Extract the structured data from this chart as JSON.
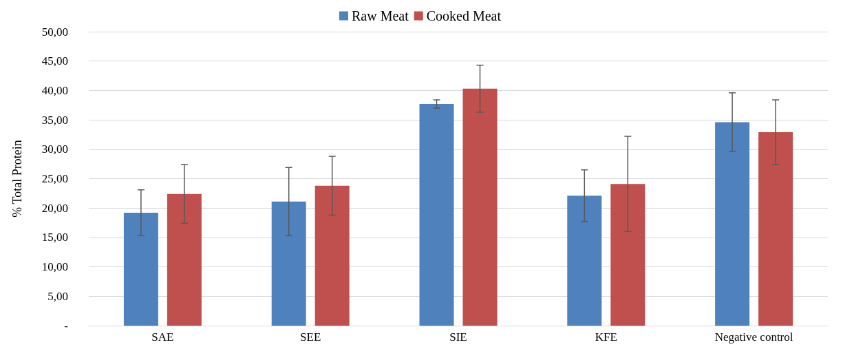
{
  "chart_data": {
    "type": "bar",
    "ylabel": "% Total Protein",
    "categories": [
      "SAE",
      "SEE",
      "SIE",
      "KFE",
      "Negative control"
    ],
    "series": [
      {
        "name": "Raw Meat",
        "color": "#4f81bd",
        "values": [
          19.2,
          21.1,
          37.7,
          22.1,
          34.6
        ],
        "errors": [
          3.9,
          5.8,
          0.7,
          4.4,
          5.0
        ]
      },
      {
        "name": "Cooked Meat",
        "color": "#c0504d",
        "values": [
          22.4,
          23.8,
          40.3,
          24.1,
          32.9
        ],
        "errors": [
          5.0,
          5.0,
          4.0,
          8.1,
          5.5
        ]
      }
    ],
    "ylim": [
      0,
      50
    ],
    "yticks": [
      {
        "value": 0,
        "label": "-"
      },
      {
        "value": 5,
        "label": "5,00"
      },
      {
        "value": 10,
        "label": "10,00"
      },
      {
        "value": 15,
        "label": "15,00"
      },
      {
        "value": 20,
        "label": "20,00"
      },
      {
        "value": 25,
        "label": "25,00"
      },
      {
        "value": 30,
        "label": "30,00"
      },
      {
        "value": 35,
        "label": "35,00"
      },
      {
        "value": 40,
        "label": "40,00"
      },
      {
        "value": 45,
        "label": "45,00"
      },
      {
        "value": 50,
        "label": "50,00"
      }
    ],
    "grid": "y",
    "legend": "top"
  }
}
